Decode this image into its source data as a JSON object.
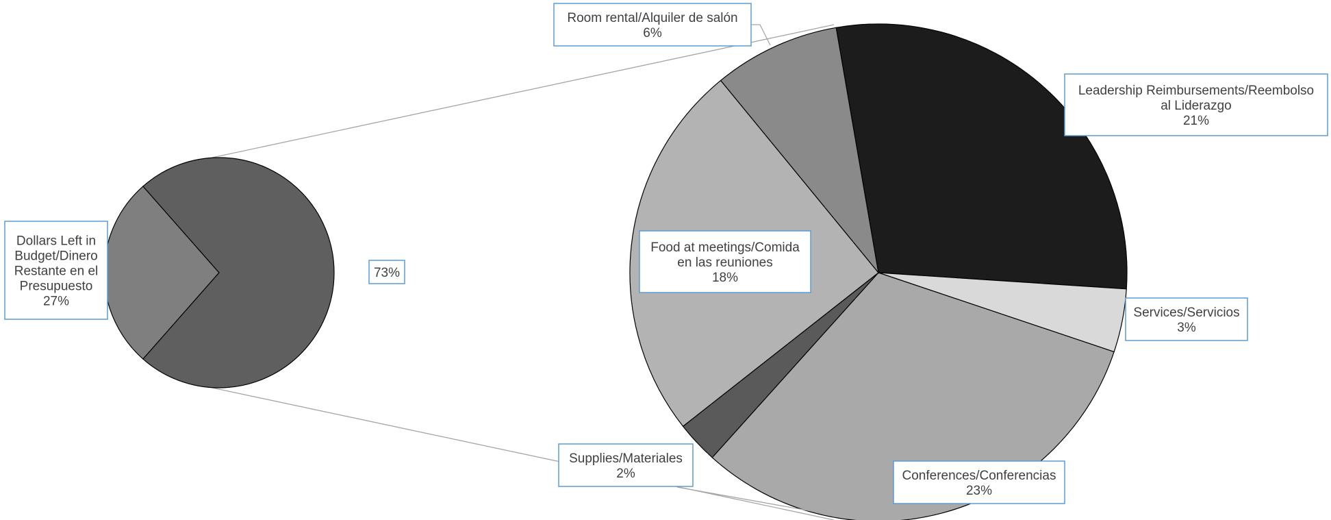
{
  "chart_data": {
    "type": "pie",
    "subtype": "pie-of-pie",
    "primary": {
      "slices": [
        {
          "label": "73%",
          "value": 73,
          "color": "#5f5f5f",
          "expanded": true
        },
        {
          "label": "Dollars Left in Budget/Dinero Restante en el Presupuesto",
          "pct": "27%",
          "value": 27,
          "color": "#7f7f7f"
        }
      ]
    },
    "secondary": {
      "slices": [
        {
          "label": "Leadership Reimbursements/Reembolso al Liderazgo",
          "pct": "21%",
          "value": 21,
          "color": "#1c1c1c"
        },
        {
          "label": "Services/Servicios",
          "pct": "3%",
          "value": 3,
          "color": "#d9d9d9"
        },
        {
          "label": "Conferences/Conferencias",
          "pct": "23%",
          "value": 23,
          "color": "#a9a9a9"
        },
        {
          "label": "Supplies/Materiales",
          "pct": "2%",
          "value": 2,
          "color": "#5a5a5a"
        },
        {
          "label": "Food at meetings/Comida en las reuniones",
          "pct": "18%",
          "value": 18,
          "color": "#b3b3b3"
        },
        {
          "label": "Room rental/Alquiler de salón",
          "pct": "6%",
          "value": 6,
          "color": "#8a8a8a"
        }
      ]
    },
    "colors": {
      "label_border": "#5b9bd5",
      "label_text": "#404040",
      "connector": "#a6a6a6"
    }
  }
}
